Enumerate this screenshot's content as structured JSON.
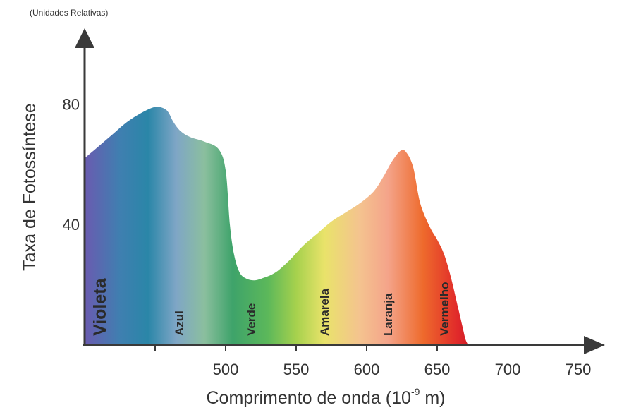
{
  "chart_data": {
    "type": "area",
    "units_note": "(Unidades Relativas)",
    "ylabel": "Taxa de Fotossíntese",
    "xlabel": "Comprimento de onda (10",
    "xlabel_exp": "-9",
    "xlabel_unit": " m)",
    "x_ticks": [
      500,
      550,
      600,
      650,
      700,
      750
    ],
    "y_ticks": [
      80,
      40
    ],
    "xlim": [
      400,
      765
    ],
    "ylim": [
      0,
      100
    ],
    "series": [
      {
        "x": [
          400,
          410,
          420,
          430,
          440,
          450,
          458,
          463,
          468,
          475,
          485,
          495,
          500,
          503,
          506,
          510,
          515,
          520,
          525,
          535,
          545,
          555,
          565,
          575,
          585,
          595,
          605,
          612,
          618,
          624,
          628,
          633,
          638,
          645,
          650,
          655,
          660,
          665,
          668,
          670,
          672
        ],
        "y": [
          62,
          66,
          70,
          74,
          77,
          79,
          78,
          74,
          71,
          69,
          67.5,
          65,
          58,
          40,
          30,
          24,
          22,
          21.5,
          22,
          24,
          28,
          33,
          37,
          41,
          44,
          47,
          51,
          56,
          61,
          64.5,
          64,
          59,
          47,
          39,
          35,
          30,
          22,
          12,
          6,
          2,
          0
        ]
      }
    ],
    "band_labels": [
      {
        "text": "Violeta",
        "x": 415
      },
      {
        "text": "Azul",
        "x": 470
      },
      {
        "text": "Verde",
        "x": 521
      },
      {
        "text": "Amarela",
        "x": 573
      },
      {
        "text": "Laranja",
        "x": 618
      },
      {
        "text": "Vermelho",
        "x": 658
      }
    ],
    "spectrum_colors": [
      {
        "x": 400,
        "color": "#6a5bb0"
      },
      {
        "x": 425,
        "color": "#3f7fb0"
      },
      {
        "x": 445,
        "color": "#2a86a8"
      },
      {
        "x": 465,
        "color": "#7fa6c6"
      },
      {
        "x": 485,
        "color": "#8bbf9e"
      },
      {
        "x": 505,
        "color": "#3ea36a"
      },
      {
        "x": 530,
        "color": "#5cb85a"
      },
      {
        "x": 550,
        "color": "#a6d14d"
      },
      {
        "x": 570,
        "color": "#e9e36a"
      },
      {
        "x": 595,
        "color": "#f4c38f"
      },
      {
        "x": 615,
        "color": "#f4a48a"
      },
      {
        "x": 640,
        "color": "#ee6a2c"
      },
      {
        "x": 665,
        "color": "#e0282a"
      },
      {
        "x": 672,
        "color": "#d11f26"
      }
    ],
    "grid": false
  }
}
